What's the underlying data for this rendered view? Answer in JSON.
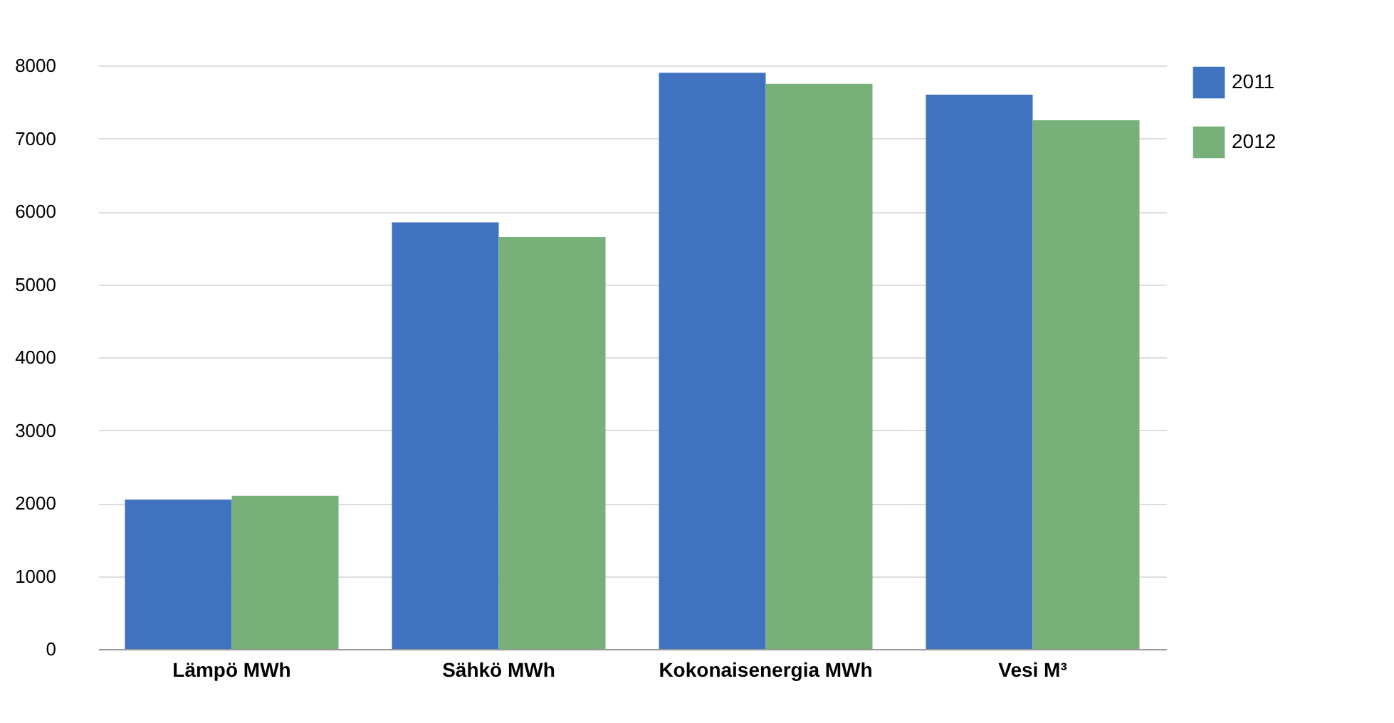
{
  "chart_data": {
    "type": "bar",
    "categories": [
      "Lämpö MWh",
      "Sähkö MWh",
      "Kokonaisenergia MWh",
      "Vesi M³"
    ],
    "series": [
      {
        "name": "2011",
        "color": "#3f73c0",
        "values": [
          2050,
          5850,
          7900,
          7600
        ]
      },
      {
        "name": "2012",
        "color": "#78b07a",
        "values": [
          2100,
          5650,
          7750,
          7250
        ]
      }
    ],
    "ylim": [
      0,
      8000
    ],
    "yticks": [
      0,
      1000,
      2000,
      3000,
      4000,
      5000,
      6000,
      7000,
      8000
    ],
    "grid": "y",
    "legend": "right"
  }
}
